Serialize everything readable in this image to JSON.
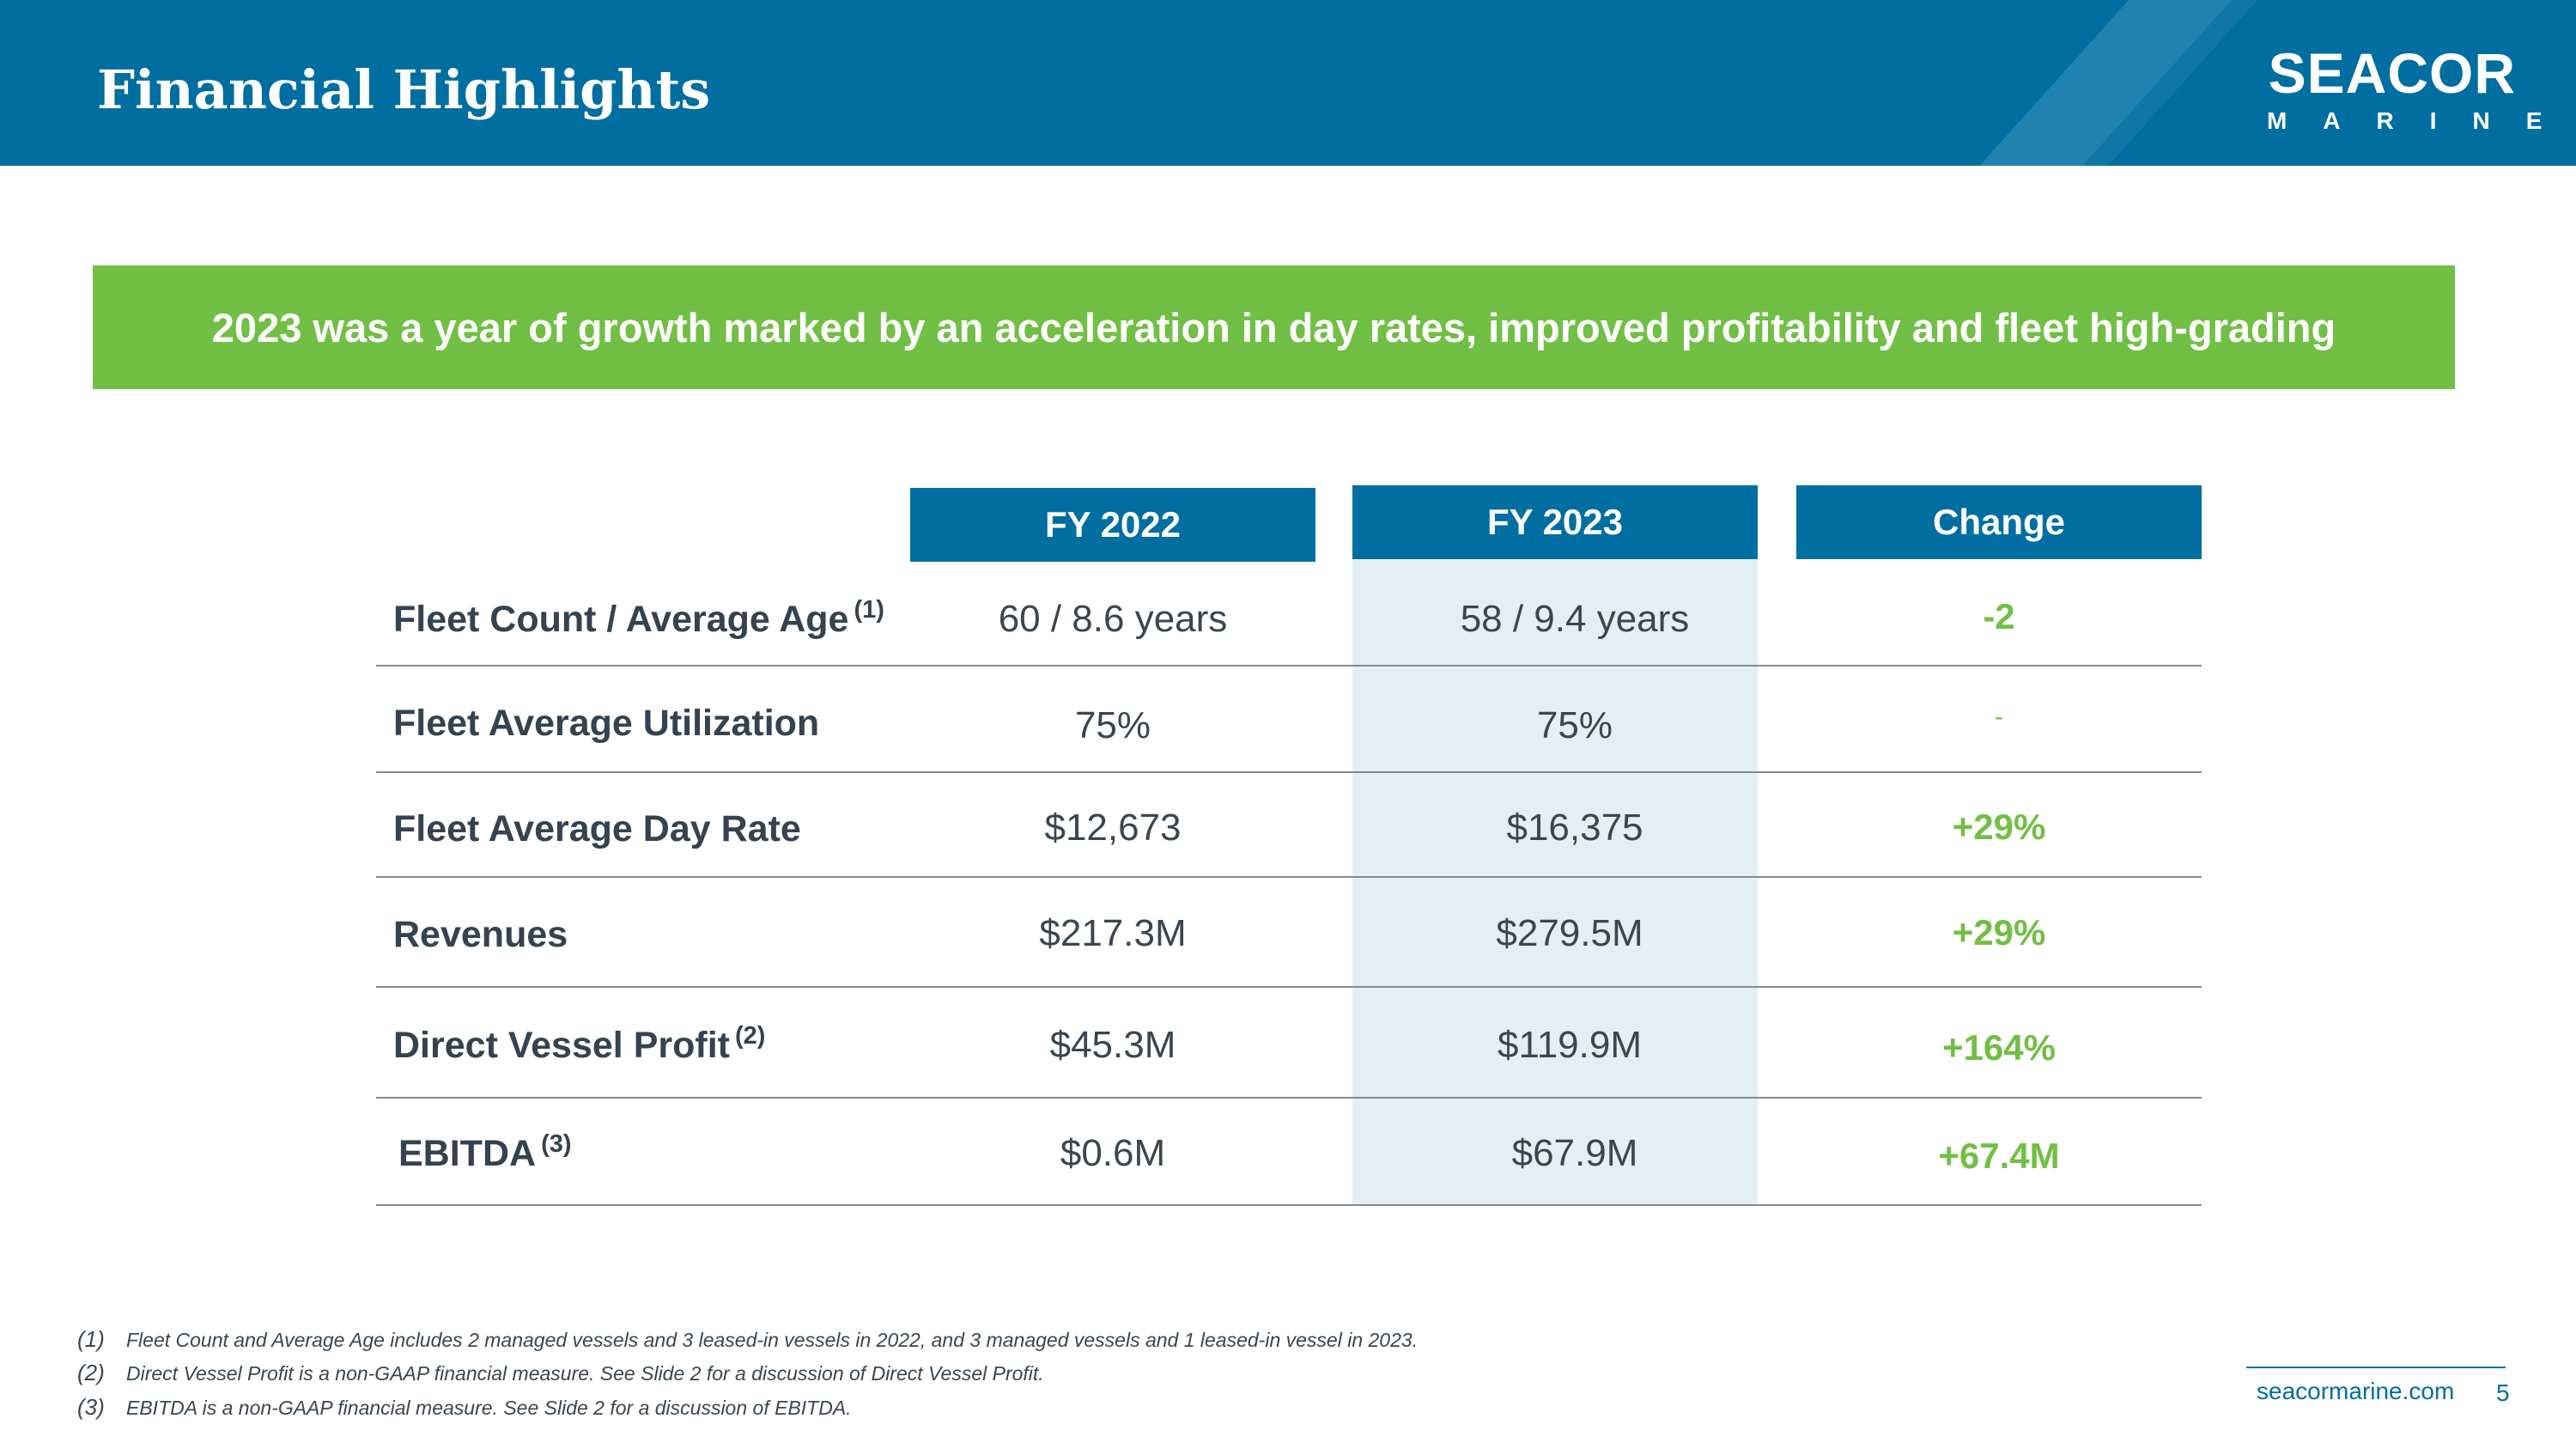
{
  "header": {
    "title": "Financial Highlights",
    "logo_top": "SEACOR",
    "logo_bottom": "MARINE"
  },
  "banner": {
    "text": "2023 was a year of growth marked by an acceleration in day rates, improved profitability and fleet high-grading"
  },
  "table": {
    "columns": [
      "FY 2022",
      "FY 2023",
      "Change"
    ],
    "rows": [
      {
        "label": "Fleet Count / Average Age",
        "note": "(1)",
        "fy2022": "60 / 8.6 years",
        "fy2023": "58 / 9.4 years",
        "change": "-2"
      },
      {
        "label": "Fleet Average Utilization",
        "note": "",
        "fy2022": "75%",
        "fy2023": "75%",
        "change": "-"
      },
      {
        "label": "Fleet Average Day Rate",
        "note": "",
        "fy2022": "$12,673",
        "fy2023": "$16,375",
        "change": "+29%"
      },
      {
        "label": "Revenues",
        "note": "",
        "fy2022": "$217.3M",
        "fy2023": "$279.5M",
        "change": "+29%"
      },
      {
        "label": "Direct Vessel Profit",
        "note": "(2)",
        "fy2022": "$45.3M",
        "fy2023": "$119.9M",
        "change": "+164%"
      },
      {
        "label": "EBITDA",
        "note": "(3)",
        "fy2022": "$0.6M",
        "fy2023": "$67.9M",
        "change": "+67.4M"
      }
    ]
  },
  "footnotes": [
    {
      "num": "(1)",
      "text": "Fleet Count and Average Age includes 2 managed vessels and 3 leased-in vessels in 2022, and 3 managed vessels and 1 leased-in vessel in 2023."
    },
    {
      "num": "(2)",
      "text": "Direct Vessel Profit is a non-GAAP financial measure. See Slide 2 for a discussion of Direct Vessel Profit."
    },
    {
      "num": "(3)",
      "text": "EBITDA is a non-GAAP financial measure. See Slide 2 for a discussion of EBITDA."
    }
  ],
  "footer": {
    "site": "seacormarine.com",
    "page": "5"
  },
  "colors": {
    "brand_blue": "#006ea0",
    "accent_green": "#71bf44",
    "band_blue": "#e3eff4",
    "text_dark": "#34434f"
  }
}
